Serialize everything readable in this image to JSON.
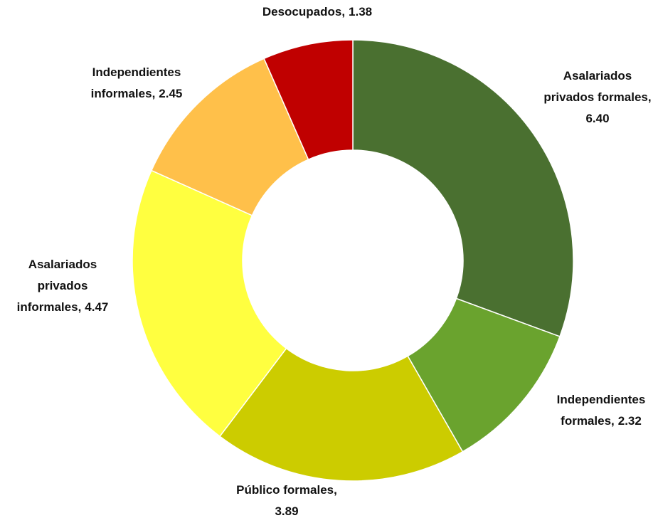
{
  "chart_data": {
    "type": "donut",
    "categories": [
      "Asalariados privados formales,",
      "Independientes formales,",
      "Público formales,",
      "Asalariados privados informales,",
      "Independientes informales,",
      "Desocupados,"
    ],
    "values": [
      6.4,
      2.32,
      3.89,
      4.47,
      2.45,
      1.38
    ],
    "value_labels": [
      "6.40",
      "2.32",
      "3.89",
      "4.47",
      "2.45",
      "1.38"
    ],
    "colors": [
      "#4a7030",
      "#6aa32e",
      "#cccc00",
      "#ffff40",
      "#ffc04a",
      "#c00000"
    ]
  }
}
